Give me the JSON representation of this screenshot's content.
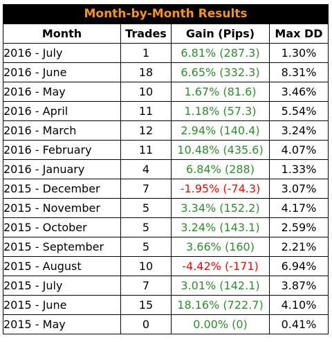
{
  "table": {
    "title": "Month-by-Month Results",
    "headers": {
      "month": "Month",
      "trades": "Trades",
      "gain": "Gain (Pips)",
      "max_dd": "Max DD"
    },
    "colors": {
      "title_text": "#f7941d",
      "title_bg": "#000000",
      "gain_positive": "#2e8b2e",
      "gain_negative": "#ff0000"
    },
    "rows": [
      {
        "month": "2016 - July",
        "trades": "1",
        "gain": "6.81% (287.3)",
        "max_dd": "1.30%",
        "negative": false
      },
      {
        "month": "2016 - June",
        "trades": "18",
        "gain": "6.65% (332.3)",
        "max_dd": "8.31%",
        "negative": false
      },
      {
        "month": "2016 - May",
        "trades": "10",
        "gain": "1.67% (81.6)",
        "max_dd": "3.46%",
        "negative": false
      },
      {
        "month": "2016 - April",
        "trades": "11",
        "gain": "1.18% (57.3)",
        "max_dd": "5.54%",
        "negative": false
      },
      {
        "month": "2016 - March",
        "trades": "12",
        "gain": "2.94% (140.4)",
        "max_dd": "3.24%",
        "negative": false
      },
      {
        "month": "2016 - February",
        "trades": "11",
        "gain": "10.48% (435.6)",
        "max_dd": "4.07%",
        "negative": false
      },
      {
        "month": "2016 - January",
        "trades": "4",
        "gain": "6.84% (288)",
        "max_dd": "1.33%",
        "negative": false
      },
      {
        "month": "2015 - December",
        "trades": "7",
        "gain": "-1.95% (-74.3)",
        "max_dd": "3.07%",
        "negative": true
      },
      {
        "month": "2015 - November",
        "trades": "5",
        "gain": "3.34% (152.2)",
        "max_dd": "4.17%",
        "negative": false
      },
      {
        "month": "2015 - October",
        "trades": "5",
        "gain": "3.24% (143.1)",
        "max_dd": "2.59%",
        "negative": false
      },
      {
        "month": "2015 - September",
        "trades": "5",
        "gain": "3.66% (160)",
        "max_dd": "2.21%",
        "negative": false
      },
      {
        "month": "2015 - August",
        "trades": "10",
        "gain": "-4.42% (-171)",
        "max_dd": "6.94%",
        "negative": true
      },
      {
        "month": "2015 - July",
        "trades": "7",
        "gain": "3.01% (142.1)",
        "max_dd": "3.87%",
        "negative": false
      },
      {
        "month": "2015 - June",
        "trades": "15",
        "gain": "18.16% (722.7)",
        "max_dd": "4.10%",
        "negative": false
      },
      {
        "month": "2015 - May",
        "trades": "0",
        "gain": "0.00% (0)",
        "max_dd": "0.41%",
        "negative": false
      }
    ]
  }
}
